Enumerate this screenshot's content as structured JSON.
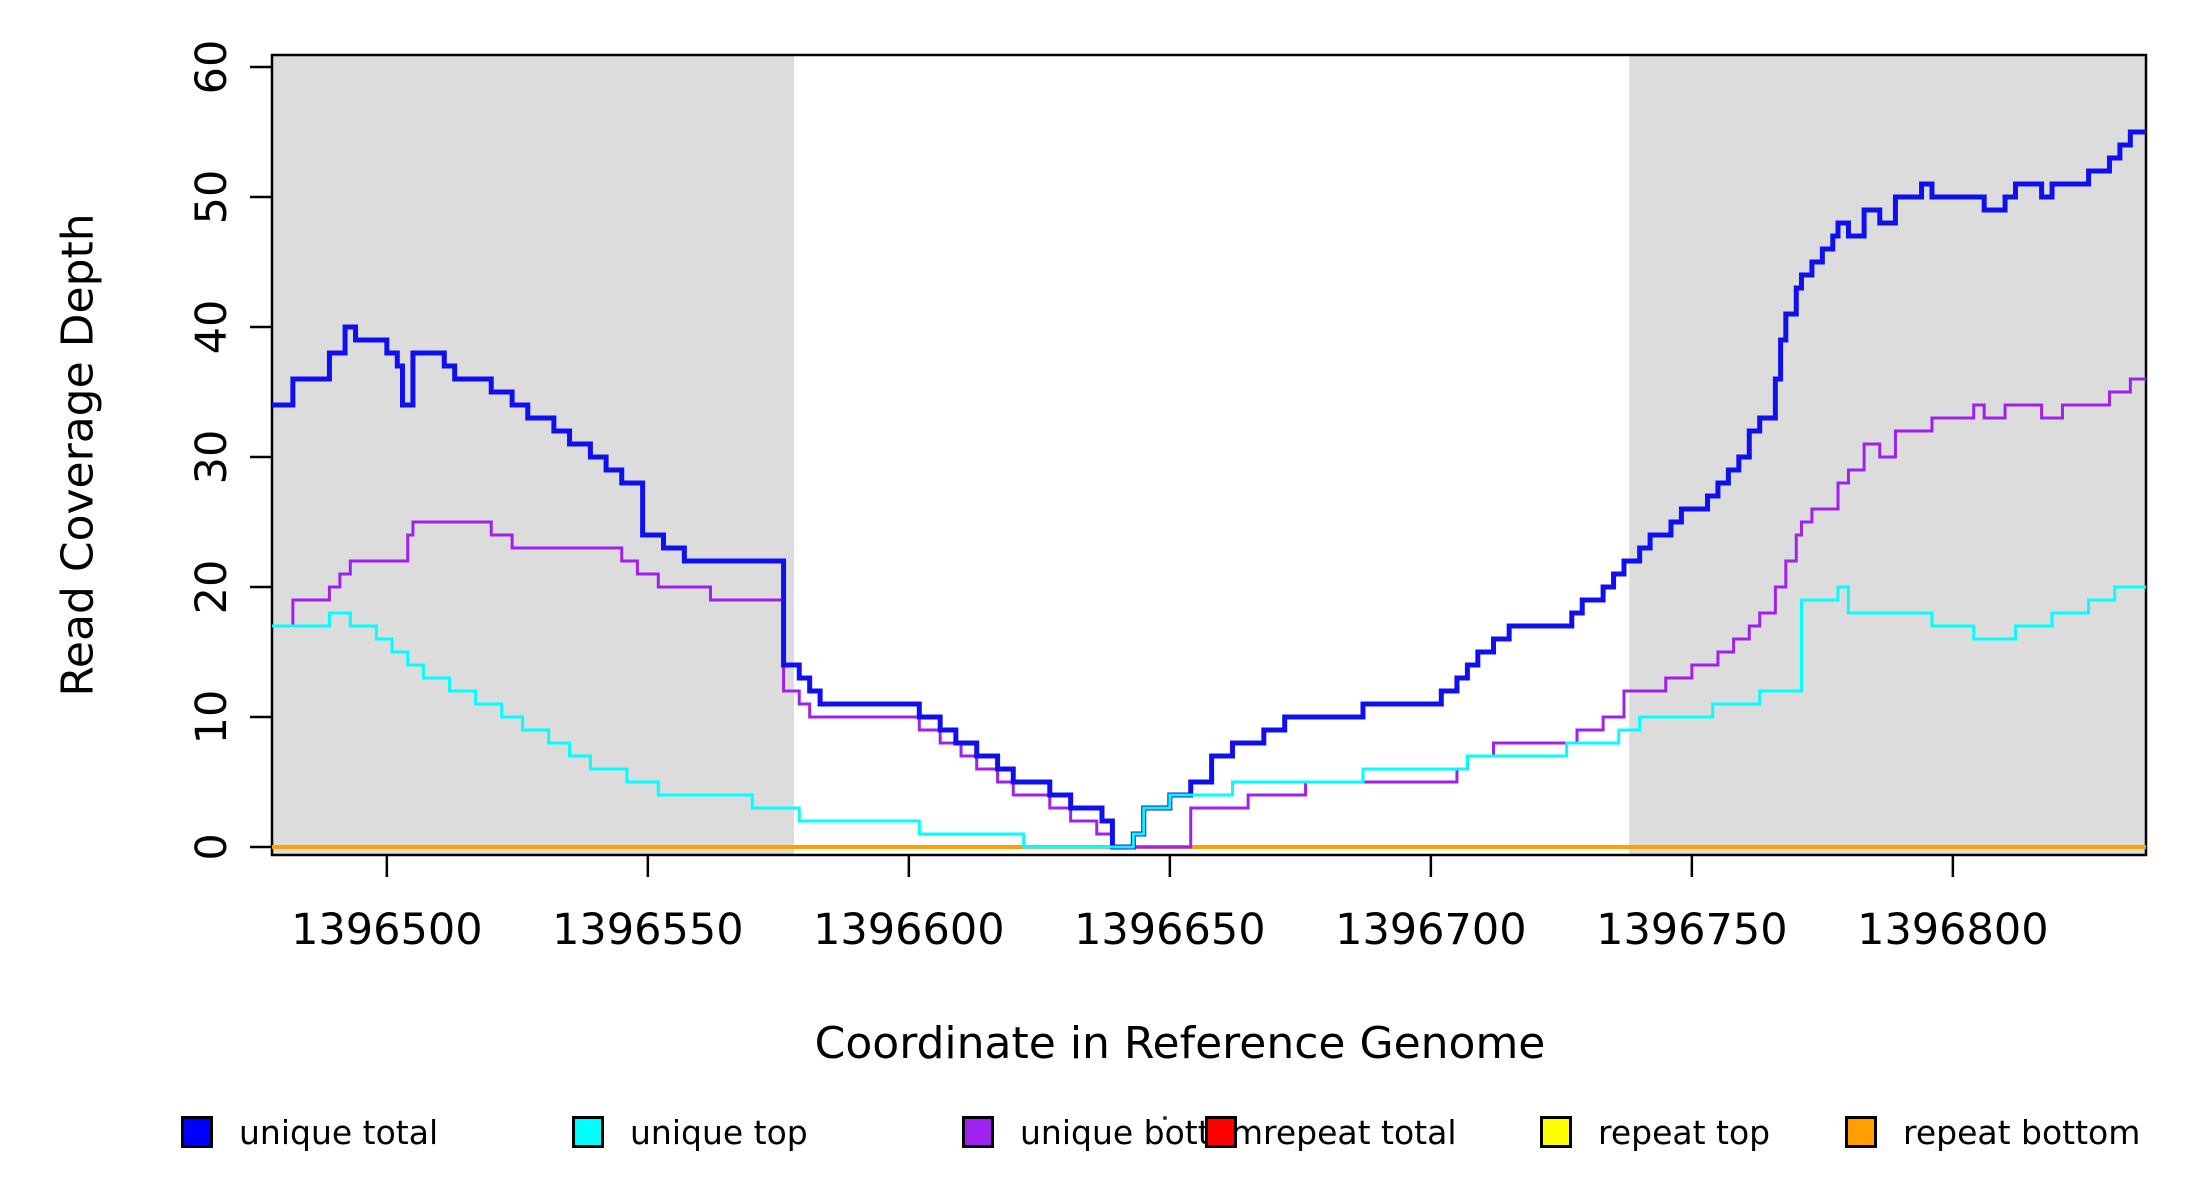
{
  "chart_data": {
    "type": "line",
    "subtype": "step-coverage-plot",
    "title": "",
    "xlabel": "Coordinate in Reference Genome",
    "ylabel": "Read Coverage Depth",
    "x_domain": [
      1396478,
      1396837
    ],
    "y_domain_ticks": [
      0,
      60
    ],
    "x_ticks": [
      1396500,
      1396550,
      1396600,
      1396650,
      1396700,
      1396750,
      1396800
    ],
    "y_ticks": [
      0,
      10,
      20,
      30,
      40,
      50,
      60
    ],
    "grid": "off",
    "background_color": "#ffffff",
    "shaded_region_color": "#dcdcdc",
    "shaded_regions": [
      {
        "name": "left-gray-region",
        "x0": 1396478,
        "x1": 1396578
      },
      {
        "name": "right-gray-region",
        "x0": 1396738,
        "x1": 1396837
      }
    ],
    "legend_position": "bottom",
    "series": [
      {
        "name": "unique total",
        "color": "#1010EE",
        "line_width": 5,
        "steps": [
          [
            1396478,
            34
          ],
          [
            1396482,
            36
          ],
          [
            1396489,
            38
          ],
          [
            1396492,
            40
          ],
          [
            1396494,
            39
          ],
          [
            1396500,
            38
          ],
          [
            1396502,
            37
          ],
          [
            1396503,
            34
          ],
          [
            1396505,
            38
          ],
          [
            1396511,
            37
          ],
          [
            1396513,
            36
          ],
          [
            1396520,
            35
          ],
          [
            1396524,
            34
          ],
          [
            1396527,
            33
          ],
          [
            1396532,
            32
          ],
          [
            1396535,
            31
          ],
          [
            1396539,
            30
          ],
          [
            1396542,
            29
          ],
          [
            1396545,
            28
          ],
          [
            1396549,
            24
          ],
          [
            1396553,
            23
          ],
          [
            1396557,
            22
          ],
          [
            1396576,
            14
          ],
          [
            1396579,
            13
          ],
          [
            1396581,
            12
          ],
          [
            1396583,
            11
          ],
          [
            1396602,
            10
          ],
          [
            1396606,
            9
          ],
          [
            1396609,
            8
          ],
          [
            1396613,
            7
          ],
          [
            1396617,
            6
          ],
          [
            1396620,
            5
          ],
          [
            1396627,
            4
          ],
          [
            1396631,
            3
          ],
          [
            1396637,
            2
          ],
          [
            1396639,
            0
          ],
          [
            1396643,
            1
          ],
          [
            1396645,
            3
          ],
          [
            1396650,
            4
          ],
          [
            1396654,
            5
          ],
          [
            1396658,
            7
          ],
          [
            1396662,
            8
          ],
          [
            1396668,
            9
          ],
          [
            1396672,
            10
          ],
          [
            1396687,
            11
          ],
          [
            1396702,
            12
          ],
          [
            1396705,
            13
          ],
          [
            1396707,
            14
          ],
          [
            1396709,
            15
          ],
          [
            1396712,
            16
          ],
          [
            1396715,
            17
          ],
          [
            1396727,
            18
          ],
          [
            1396729,
            19
          ],
          [
            1396733,
            20
          ],
          [
            1396735,
            21
          ],
          [
            1396737,
            22
          ],
          [
            1396740,
            23
          ],
          [
            1396742,
            24
          ],
          [
            1396746,
            25
          ],
          [
            1396748,
            26
          ],
          [
            1396753,
            27
          ],
          [
            1396755,
            28
          ],
          [
            1396757,
            29
          ],
          [
            1396759,
            30
          ],
          [
            1396761,
            32
          ],
          [
            1396763,
            33
          ],
          [
            1396766,
            36
          ],
          [
            1396767,
            39
          ],
          [
            1396768,
            41
          ],
          [
            1396770,
            43
          ],
          [
            1396771,
            44
          ],
          [
            1396773,
            45
          ],
          [
            1396775,
            46
          ],
          [
            1396777,
            47
          ],
          [
            1396778,
            48
          ],
          [
            1396780,
            47
          ],
          [
            1396783,
            49
          ],
          [
            1396786,
            48
          ],
          [
            1396789,
            50
          ],
          [
            1396794,
            51
          ],
          [
            1396796,
            50
          ],
          [
            1396806,
            49
          ],
          [
            1396810,
            50
          ],
          [
            1396812,
            51
          ],
          [
            1396817,
            50
          ],
          [
            1396819,
            51
          ],
          [
            1396826,
            52
          ],
          [
            1396830,
            53
          ],
          [
            1396832,
            54
          ],
          [
            1396834,
            55
          ]
        ]
      },
      {
        "name": "unique top",
        "color": "#00FFFF",
        "line_width": 3,
        "steps": [
          [
            1396478,
            17
          ],
          [
            1396489,
            18
          ],
          [
            1396493,
            17
          ],
          [
            1396498,
            16
          ],
          [
            1396501,
            15
          ],
          [
            1396504,
            14
          ],
          [
            1396507,
            13
          ],
          [
            1396512,
            12
          ],
          [
            1396517,
            11
          ],
          [
            1396522,
            10
          ],
          [
            1396526,
            9
          ],
          [
            1396531,
            8
          ],
          [
            1396535,
            7
          ],
          [
            1396539,
            6
          ],
          [
            1396546,
            5
          ],
          [
            1396552,
            4
          ],
          [
            1396570,
            3
          ],
          [
            1396579,
            2
          ],
          [
            1396602,
            1
          ],
          [
            1396622,
            0
          ],
          [
            1396643,
            1
          ],
          [
            1396645,
            3
          ],
          [
            1396650,
            4
          ],
          [
            1396662,
            5
          ],
          [
            1396687,
            6
          ],
          [
            1396707,
            7
          ],
          [
            1396726,
            8
          ],
          [
            1396736,
            9
          ],
          [
            1396740,
            10
          ],
          [
            1396754,
            11
          ],
          [
            1396763,
            12
          ],
          [
            1396771,
            19
          ],
          [
            1396778,
            20
          ],
          [
            1396780,
            18
          ],
          [
            1396796,
            17
          ],
          [
            1396804,
            16
          ],
          [
            1396812,
            17
          ],
          [
            1396819,
            18
          ],
          [
            1396826,
            19
          ],
          [
            1396831,
            20
          ]
        ]
      },
      {
        "name": "unique bottom",
        "color": "#A020F0",
        "line_width": 3,
        "steps": [
          [
            1396478,
            17
          ],
          [
            1396482,
            19
          ],
          [
            1396489,
            20
          ],
          [
            1396491,
            21
          ],
          [
            1396493,
            22
          ],
          [
            1396504,
            24
          ],
          [
            1396505,
            25
          ],
          [
            1396520,
            24
          ],
          [
            1396524,
            23
          ],
          [
            1396545,
            22
          ],
          [
            1396548,
            21
          ],
          [
            1396552,
            20
          ],
          [
            1396562,
            19
          ],
          [
            1396576,
            12
          ],
          [
            1396579,
            11
          ],
          [
            1396581,
            10
          ],
          [
            1396602,
            9
          ],
          [
            1396606,
            8
          ],
          [
            1396610,
            7
          ],
          [
            1396613,
            6
          ],
          [
            1396617,
            5
          ],
          [
            1396620,
            4
          ],
          [
            1396627,
            3
          ],
          [
            1396631,
            2
          ],
          [
            1396636,
            1
          ],
          [
            1396639,
            0
          ],
          [
            1396654,
            3
          ],
          [
            1396665,
            4
          ],
          [
            1396676,
            5
          ],
          [
            1396705,
            6
          ],
          [
            1396707,
            7
          ],
          [
            1396712,
            8
          ],
          [
            1396728,
            9
          ],
          [
            1396733,
            10
          ],
          [
            1396737,
            12
          ],
          [
            1396745,
            13
          ],
          [
            1396750,
            14
          ],
          [
            1396755,
            15
          ],
          [
            1396758,
            16
          ],
          [
            1396761,
            17
          ],
          [
            1396763,
            18
          ],
          [
            1396766,
            20
          ],
          [
            1396768,
            22
          ],
          [
            1396770,
            24
          ],
          [
            1396771,
            25
          ],
          [
            1396773,
            26
          ],
          [
            1396778,
            28
          ],
          [
            1396780,
            29
          ],
          [
            1396783,
            31
          ],
          [
            1396786,
            30
          ],
          [
            1396789,
            32
          ],
          [
            1396796,
            33
          ],
          [
            1396804,
            34
          ],
          [
            1396806,
            33
          ],
          [
            1396810,
            34
          ],
          [
            1396817,
            33
          ],
          [
            1396821,
            34
          ],
          [
            1396830,
            35
          ],
          [
            1396834,
            36
          ]
        ]
      },
      {
        "name": "repeat total",
        "color": "#FF0000",
        "line_width": 3,
        "steps": [
          [
            1396478,
            0
          ]
        ]
      },
      {
        "name": "repeat top",
        "color": "#FFFF00",
        "line_width": 3,
        "steps": [
          [
            1396478,
            0
          ]
        ]
      },
      {
        "name": "repeat bottom",
        "color": "#FFA000",
        "line_width": 4,
        "steps": [
          [
            1396478,
            0
          ]
        ]
      }
    ],
    "legend": [
      {
        "label": "unique total",
        "color": "#0000FF"
      },
      {
        "label": "unique top",
        "color": "#00FFFF"
      },
      {
        "label": "unique bottom",
        "color": "#A020F0"
      },
      {
        "label": "repeat total",
        "color": "#FF0000"
      },
      {
        "label": "repeat top",
        "color": "#FFFF00"
      },
      {
        "label": "repeat bottom",
        "color": "#FFA000"
      }
    ]
  },
  "labels": {
    "xlabel": "Coordinate in Reference Genome",
    "ylabel": "Read Coverage Depth"
  }
}
